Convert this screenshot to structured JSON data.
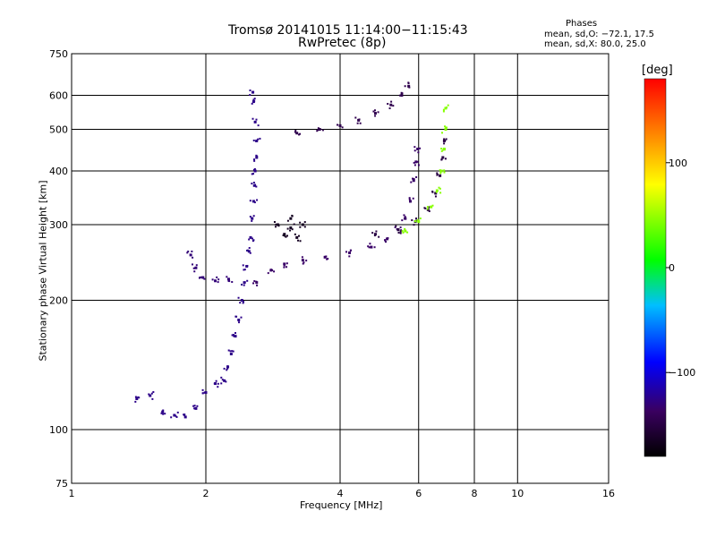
{
  "chart_data": {
    "type": "scatter",
    "title": "Tromsø 20141015 11:14:00−11:15:43",
    "subtitle": "RwPretec (8p)",
    "xlabel": "Frequency [MHz]",
    "ylabel": "Stationary phase Virtual Height [km]",
    "x_scale": "log",
    "y_scale": "log",
    "xlim": [
      1,
      16
    ],
    "ylim": [
      75,
      750
    ],
    "xticks": [
      1,
      2,
      4,
      6,
      8,
      10,
      16
    ],
    "xtick_labels": [
      "1",
      "2",
      "4",
      "6",
      "8",
      "10",
      "16"
    ],
    "yticks": [
      75,
      100,
      200,
      300,
      400,
      500,
      600,
      750
    ],
    "ytick_labels": [
      "75",
      "100",
      "200",
      "300",
      "400",
      "500",
      "600",
      "750"
    ],
    "grid": true,
    "phase_legend": {
      "title": "Phases",
      "line1": "mean, sd,O: −72.1, 17.5",
      "line2": "mean, sd,X:  80.0, 25.0"
    },
    "colorbar": {
      "label": "[deg]",
      "range": [
        -180,
        180
      ],
      "ticks": [
        100,
        0,
        -100
      ],
      "tick_labels": [
        "100",
        "0",
        "−100"
      ]
    },
    "traces": [
      {
        "desc": "near-vertical spread trace",
        "phase": -125,
        "points": [
          [
            2.55,
            610
          ],
          [
            2.56,
            580
          ],
          [
            2.58,
            520
          ],
          [
            2.6,
            470
          ],
          [
            2.6,
            430
          ],
          [
            2.58,
            400
          ],
          [
            2.57,
            370
          ],
          [
            2.56,
            340
          ],
          [
            2.54,
            310
          ],
          [
            2.52,
            280
          ],
          [
            2.5,
            260
          ],
          [
            2.47,
            240
          ],
          [
            2.44,
            220
          ],
          [
            2.41,
            200
          ],
          [
            2.37,
            180
          ],
          [
            2.33,
            165
          ],
          [
            2.28,
            150
          ],
          [
            2.24,
            140
          ],
          [
            2.2,
            130
          ]
        ]
      },
      {
        "desc": "O-mode F trace",
        "phase": -135,
        "points": [
          [
            2.6,
            220
          ],
          [
            2.8,
            235
          ],
          [
            3.0,
            243
          ],
          [
            3.3,
            248
          ],
          [
            3.7,
            252
          ],
          [
            4.2,
            258
          ],
          [
            4.7,
            266
          ],
          [
            5.1,
            278
          ],
          [
            5.4,
            292
          ],
          [
            5.6,
            310
          ],
          [
            5.75,
            340
          ],
          [
            5.85,
            380
          ],
          [
            5.92,
            420
          ],
          [
            5.97,
            450
          ]
        ]
      },
      {
        "desc": "upper O trace",
        "phase": -145,
        "points": [
          [
            3.2,
            490
          ],
          [
            3.6,
            500
          ],
          [
            4.0,
            510
          ],
          [
            4.4,
            525
          ],
          [
            4.8,
            545
          ],
          [
            5.2,
            570
          ],
          [
            5.5,
            600
          ],
          [
            5.7,
            630
          ]
        ]
      },
      {
        "desc": "X-mode trace",
        "phase": -150,
        "points": [
          [
            4.8,
            285
          ],
          [
            5.4,
            292
          ],
          [
            5.9,
            305
          ],
          [
            6.3,
            325
          ],
          [
            6.55,
            355
          ],
          [
            6.7,
            390
          ],
          [
            6.8,
            430
          ],
          [
            6.85,
            470
          ]
        ]
      },
      {
        "desc": "X-mode green trace",
        "phase": 45,
        "points": [
          [
            5.6,
            290
          ],
          [
            6.0,
            305
          ],
          [
            6.4,
            330
          ],
          [
            6.6,
            360
          ],
          [
            6.75,
            400
          ],
          [
            6.85,
            450
          ],
          [
            6.9,
            500
          ],
          [
            6.9,
            560
          ]
        ]
      },
      {
        "desc": "cusp feature",
        "phase": -130,
        "points": [
          [
            1.85,
            255
          ],
          [
            1.9,
            238
          ],
          [
            1.97,
            226
          ],
          [
            2.1,
            222
          ],
          [
            2.25,
            224
          ]
        ]
      },
      {
        "desc": "E region low echoes",
        "phase": -125,
        "points": [
          [
            1.4,
            118
          ],
          [
            1.5,
            120
          ],
          [
            1.6,
            110
          ],
          [
            1.7,
            108
          ],
          [
            1.8,
            107
          ],
          [
            1.9,
            112
          ],
          [
            2.0,
            122
          ],
          [
            2.1,
            128
          ]
        ]
      },
      {
        "desc": "dark blob",
        "phase": -165,
        "points": [
          [
            2.9,
            300
          ],
          [
            3.0,
            285
          ],
          [
            3.1,
            295
          ],
          [
            3.2,
            280
          ],
          [
            3.3,
            300
          ],
          [
            3.1,
            310
          ]
        ]
      }
    ]
  }
}
